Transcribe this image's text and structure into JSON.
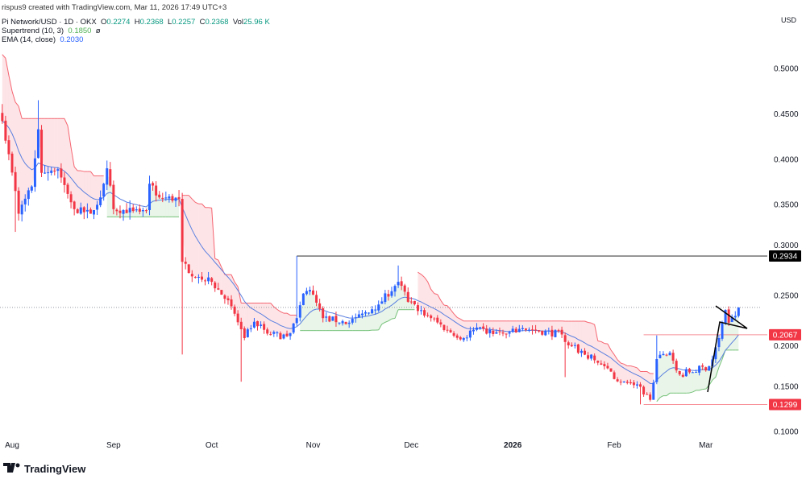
{
  "header": {
    "credit": "rispus9 created with TradingView.com, Mar 11, 2026 17:49 UTC+3",
    "symbol": "Pi Network/USD · 1D · OKX",
    "o_label": "O",
    "o": "0.2274",
    "h_label": "H",
    "h": "0.2368",
    "l_label": "L",
    "l": "0.2257",
    "c_label": "C",
    "c": "0.2368",
    "vol_label": "Vol",
    "vol": "25.96 K",
    "supertrend_label": "Supertrend (10, 3)",
    "supertrend_value": "0.1850",
    "supertrend_extra": "ø",
    "ema_label": "EMA (14, close)",
    "ema_value": "0.2030"
  },
  "currency": "USD",
  "logo_text": "TradingView",
  "chart_data": {
    "type": "candlestick",
    "ylim": [
      0.1,
      0.5
    ],
    "y_ticks": [
      "0.5000",
      "0.4500",
      "0.4000",
      "0.3500",
      "0.3000",
      "0.2500",
      "0.2000",
      "0.1500",
      "0.1000"
    ],
    "x_ticks": [
      {
        "label": "Aug",
        "date": "2025-08-01"
      },
      {
        "label": "Sep",
        "date": "2025-09-01"
      },
      {
        "label": "Oct",
        "date": "2025-10-01"
      },
      {
        "label": "Nov",
        "date": "2025-11-01"
      },
      {
        "label": "Dec",
        "date": "2025-12-01"
      },
      {
        "label": "2026",
        "date": "2026-01-01"
      },
      {
        "label": "Feb",
        "date": "2026-02-01"
      },
      {
        "label": "Mar",
        "date": "2026-03-01"
      }
    ],
    "close_anchors": [
      [
        "2025-07-29",
        0.442
      ],
      [
        "2025-08-02",
        0.365
      ],
      [
        "2025-08-03",
        0.34
      ],
      [
        "2025-08-07",
        0.37
      ],
      [
        "2025-08-09",
        0.433
      ],
      [
        "2025-08-10",
        0.385
      ],
      [
        "2025-08-15",
        0.389
      ],
      [
        "2025-08-20",
        0.345
      ],
      [
        "2025-08-25",
        0.34
      ],
      [
        "2025-08-28",
        0.358
      ],
      [
        "2025-08-30",
        0.39
      ],
      [
        "2025-09-01",
        0.345
      ],
      [
        "2025-09-07",
        0.343
      ],
      [
        "2025-09-11",
        0.343
      ],
      [
        "2025-09-12",
        0.373
      ],
      [
        "2025-09-15",
        0.358
      ],
      [
        "2025-09-21",
        0.356
      ],
      [
        "2025-09-22",
        0.287
      ],
      [
        "2025-09-26",
        0.27
      ],
      [
        "2025-10-01",
        0.265
      ],
      [
        "2025-10-07",
        0.238
      ],
      [
        "2025-10-11",
        0.203
      ],
      [
        "2025-10-14",
        0.221
      ],
      [
        "2025-10-19",
        0.207
      ],
      [
        "2025-10-24",
        0.205
      ],
      [
        "2025-10-27",
        0.225
      ],
      [
        "2025-10-29",
        0.252
      ],
      [
        "2025-10-31",
        0.256
      ],
      [
        "2025-11-04",
        0.225
      ],
      [
        "2025-11-12",
        0.22
      ],
      [
        "2025-11-16",
        0.23
      ],
      [
        "2025-11-21",
        0.24
      ],
      [
        "2025-11-27",
        0.265
      ],
      [
        "2025-11-30",
        0.243
      ],
      [
        "2025-12-07",
        0.225
      ],
      [
        "2025-12-12",
        0.212
      ],
      [
        "2025-12-17",
        0.203
      ],
      [
        "2025-12-20",
        0.212
      ],
      [
        "2025-12-30",
        0.207
      ],
      [
        "2026-01-04",
        0.214
      ],
      [
        "2026-01-16",
        0.207
      ],
      [
        "2026-01-19",
        0.194
      ],
      [
        "2026-01-29",
        0.172
      ],
      [
        "2026-02-03",
        0.154
      ],
      [
        "2026-02-08",
        0.152
      ],
      [
        "2026-02-12",
        0.135
      ],
      [
        "2026-02-14",
        0.18
      ],
      [
        "2026-02-18",
        0.187
      ],
      [
        "2026-02-21",
        0.163
      ],
      [
        "2026-03-02",
        0.172
      ],
      [
        "2026-03-05",
        0.203
      ],
      [
        "2026-03-07",
        0.234
      ],
      [
        "2026-03-08",
        0.22
      ],
      [
        "2026-03-10",
        0.2274
      ],
      [
        "2026-03-11",
        0.2368
      ]
    ],
    "wick_extremes": [
      [
        "2025-08-02",
        "low",
        0.32
      ],
      [
        "2025-08-09",
        "high",
        0.465
      ],
      [
        "2025-09-22",
        "low",
        0.185
      ],
      [
        "2025-10-10",
        "low",
        0.155
      ],
      [
        "2025-10-27",
        "high",
        0.2934
      ],
      [
        "2025-11-27",
        "high",
        0.283
      ],
      [
        "2026-01-17",
        "low",
        0.16
      ],
      [
        "2026-02-14",
        "high",
        0.206
      ],
      [
        "2026-02-09",
        "low",
        0.13
      ]
    ],
    "indicators": {
      "supertrend": {
        "period": 10,
        "multiplier": 3,
        "up_color": "#4caf50",
        "down_color": "#f23645"
      },
      "ema": {
        "period": 14,
        "color": "#5b7fe0"
      }
    },
    "levels": [
      {
        "label": "0.2934",
        "value": 0.2934,
        "color": "#000000",
        "from": "2025-10-27"
      },
      {
        "label": "0.2067",
        "value": 0.2067,
        "color": "#f23645",
        "from": "2026-02-10"
      },
      {
        "label": "0.1299",
        "value": 0.1299,
        "color": "#f23645",
        "from": "2026-02-10"
      }
    ],
    "last_price": 0.2368,
    "colors": {
      "up": "#2962ff",
      "down": "#f23645"
    }
  }
}
